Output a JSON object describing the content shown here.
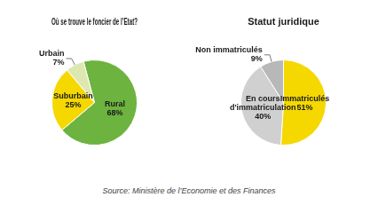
{
  "chart_data": [
    {
      "type": "pie",
      "title": "Où se trouve le foncier de l’Etat?",
      "categories": [
        "Rural",
        "Suburbain",
        "Urbain"
      ],
      "values": [
        68,
        25,
        7
      ],
      "value_labels": [
        "68%",
        "25%",
        "7%"
      ],
      "colors": [
        "#6db33f",
        "#f5d800",
        "#dde8b0"
      ],
      "data_labels": true
    },
    {
      "type": "pie",
      "title": "Statut juridique",
      "categories": [
        "Immatriculés",
        "En cours d'immatriculation",
        "Non immatriculés"
      ],
      "values": [
        51,
        40,
        9
      ],
      "value_labels": [
        "51%",
        "40%",
        "9%"
      ],
      "colors": [
        "#f5d800",
        "#d0d0d0",
        "#b8b8b8"
      ],
      "data_labels": true,
      "annotations": [
        "Source: Ministère de l’Economie et des Finances"
      ]
    }
  ]
}
